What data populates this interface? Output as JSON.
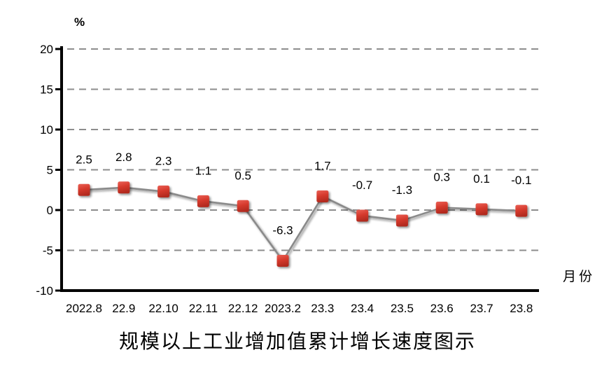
{
  "chart_data": {
    "type": "line",
    "title": "规模以上工业增加值累计增长速度图示",
    "y_unit_label": "%",
    "x_axis_label": "月份",
    "categories": [
      "2022.8",
      "22.9",
      "22.10",
      "22.11",
      "22.12",
      "2023.2",
      "23.3",
      "23.4",
      "23.5",
      "23.6",
      "23.7",
      "23.8"
    ],
    "values": [
      2.5,
      2.8,
      2.3,
      1.1,
      0.5,
      -6.3,
      1.7,
      -0.7,
      -1.3,
      0.3,
      0.1,
      -0.1
    ],
    "data_labels": [
      "2.5",
      "2.8",
      "2.3",
      "1.1",
      "0.5",
      "-6.3",
      "1.7",
      "-0.7",
      "-1.3",
      "0.3",
      "0.1",
      "-0.1"
    ],
    "ylim": [
      -10,
      20
    ],
    "y_ticks": [
      20,
      15,
      10,
      5,
      0,
      -5,
      -10
    ],
    "grid": "horizontal-dashed",
    "legend": "none",
    "marker": "square",
    "colors": {
      "marker_top": "#ea6156",
      "marker_mid": "#d63a2d",
      "marker_bottom": "#b22a1f",
      "line": "#8a8a8a",
      "grid": "#8d8d8d",
      "axis": "#000000",
      "text": "#000000"
    }
  }
}
